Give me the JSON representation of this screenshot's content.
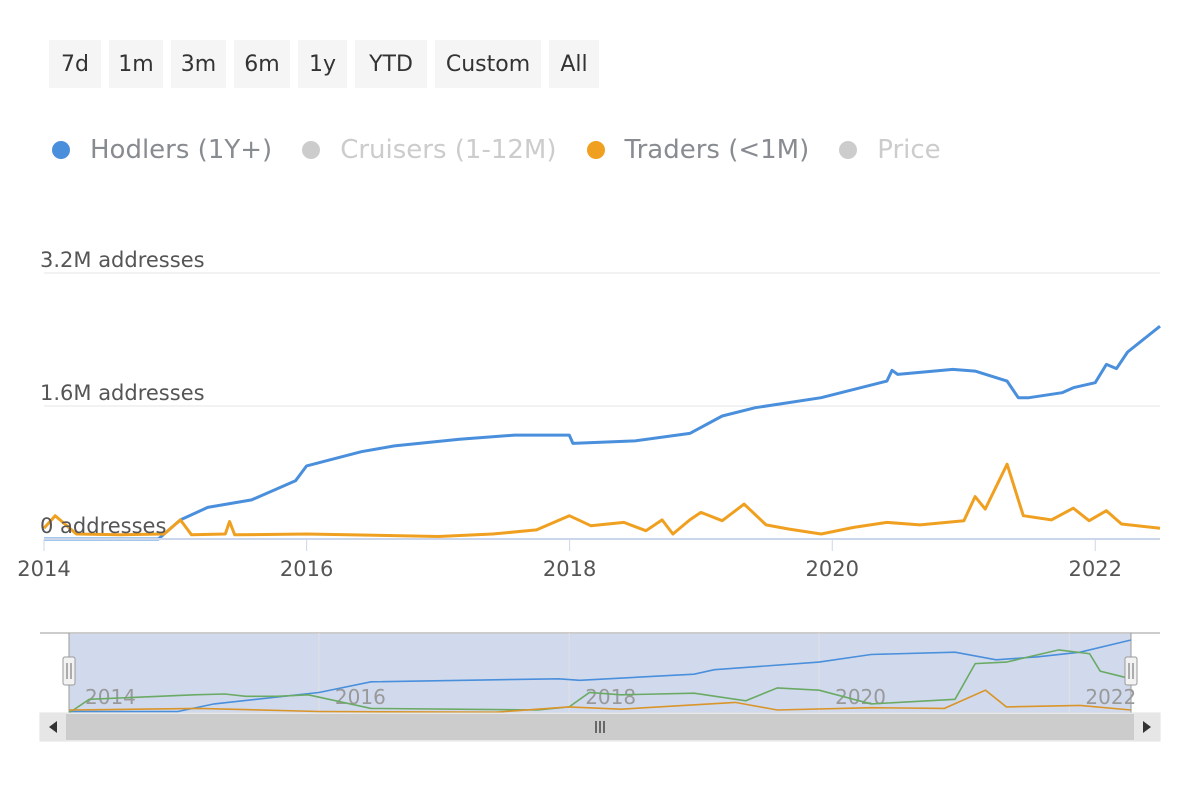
{
  "range_selector": {
    "buttons": [
      "7d",
      "1m",
      "3m",
      "6m",
      "1y",
      "YTD",
      "Custom",
      "All"
    ]
  },
  "legend": {
    "items": [
      {
        "label": "Hodlers (1Y+)",
        "color": "#4a8fdc",
        "visible": true
      },
      {
        "label": "Cruisers (1-12M)",
        "color": "#cccccc",
        "visible": false
      },
      {
        "label": "Traders (<1M)",
        "color": "#f0a020",
        "visible": true
      },
      {
        "label": "Price",
        "color": "#cccccc",
        "visible": false
      }
    ]
  },
  "chart_data": {
    "type": "line",
    "x_range": [
      "2014-01-01",
      "2022-06-30"
    ],
    "y_range": [
      0,
      3200000
    ],
    "y_ticks": [
      {
        "value": 0,
        "label": "0 addresses"
      },
      {
        "value": 1600000,
        "label": "1.6M addresses"
      },
      {
        "value": 3200000,
        "label": "3.2M addresses"
      }
    ],
    "x_ticks": [
      "2014",
      "2016",
      "2018",
      "2020",
      "2022"
    ],
    "series": [
      {
        "name": "Hodlers (1Y+)",
        "color": "#4a8fdc",
        "points": [
          [
            "2014-01-01",
            0
          ],
          [
            "2014-11-15",
            0
          ],
          [
            "2015-01-15",
            230000
          ],
          [
            "2015-04-01",
            380000
          ],
          [
            "2015-08-01",
            470000
          ],
          [
            "2015-12-01",
            700000
          ],
          [
            "2016-01-01",
            880000
          ],
          [
            "2016-06-01",
            1050000
          ],
          [
            "2016-09-01",
            1120000
          ],
          [
            "2017-03-01",
            1200000
          ],
          [
            "2017-08-01",
            1250000
          ],
          [
            "2017-12-31",
            1250000
          ],
          [
            "2018-01-10",
            1150000
          ],
          [
            "2018-07-01",
            1180000
          ],
          [
            "2018-12-01",
            1270000
          ],
          [
            "2019-03-01",
            1480000
          ],
          [
            "2019-06-01",
            1580000
          ],
          [
            "2019-12-01",
            1700000
          ],
          [
            "2020-06-01",
            1900000
          ],
          [
            "2020-06-15",
            2030000
          ],
          [
            "2020-07-01",
            1980000
          ],
          [
            "2020-12-01",
            2040000
          ],
          [
            "2021-02-01",
            2020000
          ],
          [
            "2021-05-01",
            1900000
          ],
          [
            "2021-06-01",
            1700000
          ],
          [
            "2021-07-01",
            1700000
          ],
          [
            "2021-10-01",
            1760000
          ],
          [
            "2021-11-01",
            1820000
          ],
          [
            "2022-01-01",
            1880000
          ],
          [
            "2022-02-01",
            2100000
          ],
          [
            "2022-03-01",
            2050000
          ],
          [
            "2022-04-01",
            2250000
          ],
          [
            "2022-06-30",
            2560000
          ]
        ]
      },
      {
        "name": "Traders (<1M)",
        "color": "#f0a020",
        "points": [
          [
            "2014-01-01",
            130000
          ],
          [
            "2014-02-01",
            280000
          ],
          [
            "2014-04-01",
            60000
          ],
          [
            "2014-08-01",
            50000
          ],
          [
            "2014-12-01",
            60000
          ],
          [
            "2015-01-15",
            230000
          ],
          [
            "2015-02-15",
            50000
          ],
          [
            "2015-05-20",
            60000
          ],
          [
            "2015-06-01",
            210000
          ],
          [
            "2015-06-15",
            50000
          ],
          [
            "2016-01-01",
            60000
          ],
          [
            "2017-01-01",
            30000
          ],
          [
            "2017-06-01",
            60000
          ],
          [
            "2017-10-01",
            110000
          ],
          [
            "2017-12-31",
            280000
          ],
          [
            "2018-03-01",
            160000
          ],
          [
            "2018-06-01",
            200000
          ],
          [
            "2018-08-01",
            100000
          ],
          [
            "2018-09-15",
            230000
          ],
          [
            "2018-10-15",
            60000
          ],
          [
            "2018-12-01",
            230000
          ],
          [
            "2019-01-01",
            320000
          ],
          [
            "2019-03-01",
            220000
          ],
          [
            "2019-05-01",
            420000
          ],
          [
            "2019-07-01",
            170000
          ],
          [
            "2019-09-01",
            120000
          ],
          [
            "2019-12-01",
            60000
          ],
          [
            "2020-03-01",
            140000
          ],
          [
            "2020-06-01",
            200000
          ],
          [
            "2020-09-01",
            170000
          ],
          [
            "2021-01-01",
            220000
          ],
          [
            "2021-02-01",
            510000
          ],
          [
            "2021-03-01",
            360000
          ],
          [
            "2021-05-01",
            900000
          ],
          [
            "2021-06-15",
            280000
          ],
          [
            "2021-09-01",
            230000
          ],
          [
            "2021-11-01",
            370000
          ],
          [
            "2021-12-15",
            220000
          ],
          [
            "2022-02-01",
            340000
          ],
          [
            "2022-03-15",
            180000
          ],
          [
            "2022-06-30",
            130000
          ]
        ]
      }
    ],
    "navigator": {
      "x_ticks": [
        "2014",
        "2016",
        "2018",
        "2020",
        "2022"
      ],
      "series": [
        {
          "name": "Hodlers (1Y+)",
          "color": "#4a8fdc",
          "points": [
            [
              "2014-01-01",
              0.02
            ],
            [
              "2014-11-15",
              0.02
            ],
            [
              "2015-03-01",
              0.12
            ],
            [
              "2016-01-01",
              0.27
            ],
            [
              "2016-06-01",
              0.41
            ],
            [
              "2017-12-01",
              0.45
            ],
            [
              "2018-02-01",
              0.43
            ],
            [
              "2019-01-01",
              0.51
            ],
            [
              "2019-03-01",
              0.57
            ],
            [
              "2020-01-01",
              0.67
            ],
            [
              "2020-06-01",
              0.77
            ],
            [
              "2021-02-01",
              0.8
            ],
            [
              "2021-06-01",
              0.7
            ],
            [
              "2021-10-01",
              0.74
            ],
            [
              "2022-02-01",
              0.8
            ],
            [
              "2022-06-30",
              0.96
            ]
          ]
        },
        {
          "name": "Cruisers (1-12M)",
          "color": "#6aaa64",
          "points": [
            [
              "2014-01-01",
              0.0
            ],
            [
              "2014-03-01",
              0.18
            ],
            [
              "2015-01-01",
              0.24
            ],
            [
              "2015-04-01",
              0.25
            ],
            [
              "2015-06-01",
              0.22
            ],
            [
              "2015-09-01",
              0.22
            ],
            [
              "2015-12-01",
              0.24
            ],
            [
              "2016-06-01",
              0.06
            ],
            [
              "2017-10-01",
              0.04
            ],
            [
              "2018-01-01",
              0.08
            ],
            [
              "2018-03-01",
              0.27
            ],
            [
              "2018-06-01",
              0.24
            ],
            [
              "2019-01-01",
              0.26
            ],
            [
              "2019-06-01",
              0.16
            ],
            [
              "2019-09-01",
              0.33
            ],
            [
              "2020-01-01",
              0.3
            ],
            [
              "2020-06-01",
              0.12
            ],
            [
              "2021-02-01",
              0.18
            ],
            [
              "2021-04-01",
              0.65
            ],
            [
              "2021-07-01",
              0.67
            ],
            [
              "2021-12-01",
              0.83
            ],
            [
              "2022-03-01",
              0.78
            ],
            [
              "2022-04-01",
              0.55
            ],
            [
              "2022-06-30",
              0.45
            ]
          ]
        },
        {
          "name": "Traders (<1M)",
          "color": "#d9952a",
          "points": [
            [
              "2014-01-01",
              0.04
            ],
            [
              "2015-01-15",
              0.06
            ],
            [
              "2016-01-01",
              0.02
            ],
            [
              "2017-06-01",
              0.01
            ],
            [
              "2017-12-31",
              0.08
            ],
            [
              "2018-06-01",
              0.05
            ],
            [
              "2019-05-01",
              0.14
            ],
            [
              "2019-09-01",
              0.04
            ],
            [
              "2020-06-01",
              0.07
            ],
            [
              "2021-01-01",
              0.06
            ],
            [
              "2021-05-01",
              0.3
            ],
            [
              "2021-07-01",
              0.08
            ],
            [
              "2022-02-01",
              0.1
            ],
            [
              "2022-06-30",
              0.04
            ]
          ]
        }
      ]
    }
  }
}
